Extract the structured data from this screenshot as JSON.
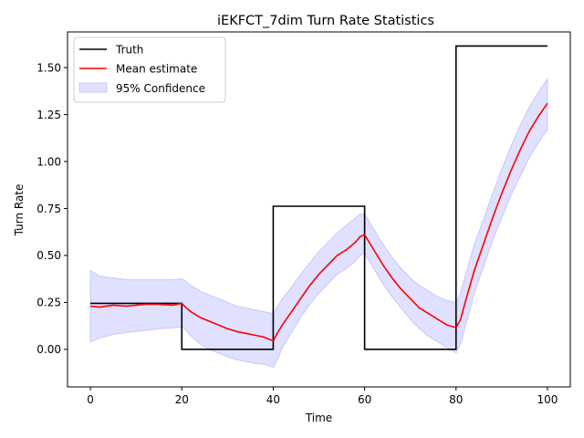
{
  "chart_data": {
    "type": "line",
    "title": "iEKFCT_7dim Turn Rate Statistics",
    "xlabel": "Time",
    "ylabel": "Turn Rate",
    "xlim": [
      -5,
      105
    ],
    "ylim": [
      -0.2,
      1.69
    ],
    "x_ticks": [
      0,
      20,
      40,
      60,
      80,
      100
    ],
    "x_tick_labels": [
      "0",
      "20",
      "40",
      "60",
      "80",
      "100"
    ],
    "y_ticks": [
      0.0,
      0.25,
      0.5,
      0.75,
      1.0,
      1.25,
      1.5
    ],
    "y_tick_labels": [
      "0.00",
      "0.25",
      "0.50",
      "0.75",
      "1.00",
      "1.25",
      "1.50"
    ],
    "grid": false,
    "legend_position": "top-left",
    "colors": {
      "truth": "#000000",
      "mean": "#ff0000",
      "confidence_fill": "#e0e0ff",
      "confidence_edge": "#c8c8f8"
    },
    "series": [
      {
        "name": "Truth",
        "kind": "line",
        "x": [
          0,
          20,
          20,
          40,
          40,
          60,
          60,
          80,
          80,
          100
        ],
        "y": [
          0.245,
          0.245,
          0.0,
          0.0,
          0.762,
          0.762,
          0.0,
          0.0,
          1.615,
          1.615
        ]
      },
      {
        "name": "Mean estimate",
        "kind": "line",
        "x": [
          0,
          2,
          5,
          8,
          10,
          12,
          15,
          18,
          20,
          21,
          22,
          24,
          26,
          28,
          30,
          32,
          34,
          36,
          38,
          40,
          41,
          42,
          44,
          46,
          48,
          50,
          52,
          54,
          56,
          58,
          59,
          60,
          62,
          64,
          66,
          68,
          70,
          72,
          74,
          76,
          78,
          80,
          81,
          82,
          84,
          86,
          88,
          90,
          92,
          94,
          96,
          98,
          100
        ],
        "y": [
          0.23,
          0.225,
          0.235,
          0.23,
          0.235,
          0.24,
          0.24,
          0.235,
          0.245,
          0.22,
          0.2,
          0.17,
          0.15,
          0.13,
          0.11,
          0.095,
          0.085,
          0.075,
          0.065,
          0.045,
          0.09,
          0.13,
          0.2,
          0.27,
          0.34,
          0.4,
          0.45,
          0.5,
          0.53,
          0.57,
          0.6,
          0.61,
          0.53,
          0.45,
          0.38,
          0.32,
          0.27,
          0.22,
          0.19,
          0.16,
          0.13,
          0.115,
          0.16,
          0.25,
          0.42,
          0.56,
          0.7,
          0.83,
          0.95,
          1.06,
          1.16,
          1.24,
          1.31
        ]
      },
      {
        "name": "95% Confidence",
        "kind": "band",
        "x": [
          0,
          2,
          5,
          8,
          10,
          12,
          15,
          18,
          20,
          21,
          22,
          24,
          26,
          28,
          30,
          32,
          34,
          36,
          38,
          40,
          41,
          42,
          44,
          46,
          48,
          50,
          52,
          54,
          56,
          58,
          59,
          60,
          62,
          64,
          66,
          68,
          70,
          72,
          74,
          76,
          78,
          80,
          81,
          82,
          84,
          86,
          88,
          90,
          92,
          94,
          96,
          98,
          100
        ],
        "lower": [
          0.04,
          0.06,
          0.08,
          0.09,
          0.095,
          0.1,
          0.11,
          0.115,
          0.12,
          0.1,
          0.07,
          0.03,
          0.0,
          -0.02,
          -0.04,
          -0.055,
          -0.065,
          -0.075,
          -0.08,
          -0.095,
          -0.05,
          0.01,
          0.09,
          0.17,
          0.24,
          0.3,
          0.35,
          0.4,
          0.43,
          0.47,
          0.5,
          0.51,
          0.43,
          0.35,
          0.28,
          0.22,
          0.16,
          0.11,
          0.07,
          0.04,
          0.01,
          -0.02,
          0.03,
          0.12,
          0.3,
          0.44,
          0.58,
          0.7,
          0.82,
          0.92,
          1.02,
          1.1,
          1.17
        ],
        "upper": [
          0.42,
          0.39,
          0.38,
          0.37,
          0.37,
          0.37,
          0.37,
          0.37,
          0.375,
          0.36,
          0.34,
          0.31,
          0.29,
          0.27,
          0.25,
          0.23,
          0.22,
          0.21,
          0.2,
          0.19,
          0.23,
          0.27,
          0.33,
          0.4,
          0.46,
          0.52,
          0.57,
          0.62,
          0.66,
          0.7,
          0.72,
          0.72,
          0.64,
          0.56,
          0.49,
          0.43,
          0.38,
          0.34,
          0.31,
          0.28,
          0.26,
          0.25,
          0.3,
          0.39,
          0.56,
          0.69,
          0.83,
          0.96,
          1.08,
          1.19,
          1.29,
          1.37,
          1.44
        ]
      }
    ]
  }
}
